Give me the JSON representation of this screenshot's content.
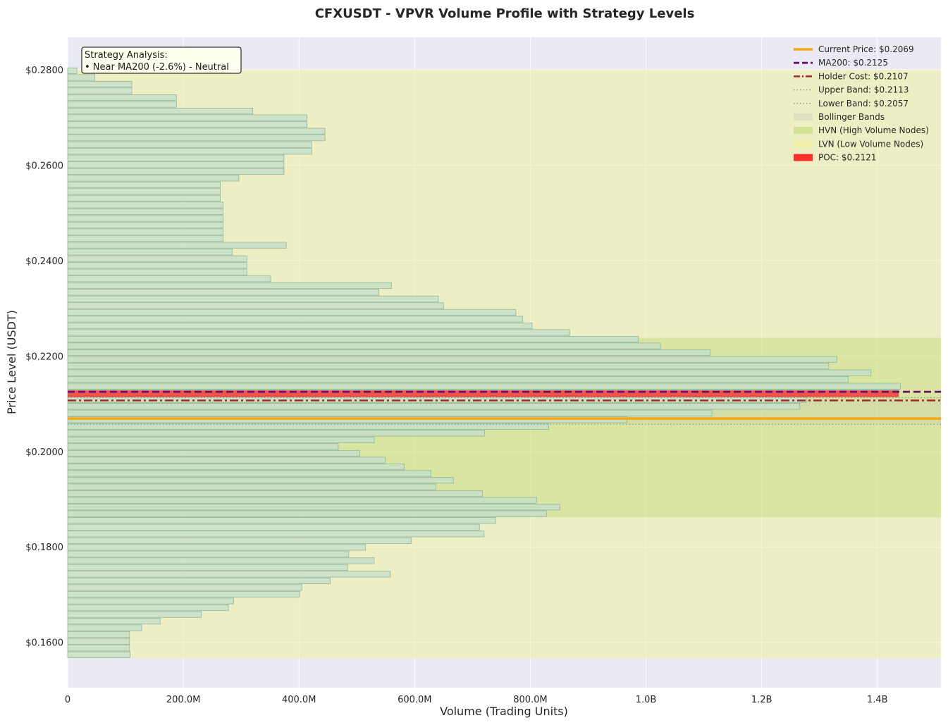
{
  "chart_data": {
    "type": "bar",
    "orientation": "horizontal",
    "title": "CFXUSDT - VPVR Volume Profile with Strategy Levels",
    "xlabel": "Volume (Trading Units)",
    "ylabel": "Price Level (USDT)",
    "xlim": [
      0,
      1510000000
    ],
    "ylim": [
      0.1505,
      0.2868
    ],
    "x_ticks": [
      0,
      200000000,
      400000000,
      600000000,
      800000000,
      1000000000,
      1200000000,
      1400000000
    ],
    "x_tick_labels": [
      "0",
      "200.0M",
      "400.0M",
      "600.0M",
      "800.0M",
      "1.0B",
      "1.2B",
      "1.4B"
    ],
    "y_ticks": [
      0.16,
      0.18,
      0.2,
      0.22,
      0.24,
      0.26,
      0.28
    ],
    "y_tick_labels": [
      "$0.1600",
      "$0.1800",
      "$0.2000",
      "$0.2200",
      "$0.2400",
      "$0.2600",
      "$0.2800"
    ],
    "grid": true,
    "legend_position": "top-right",
    "bin_price_min": 0.1567,
    "bin_price_max": 0.2805,
    "volumes_bottom_to_top": [
      108000000,
      107000000,
      107000000,
      107000000,
      128000000,
      160000000,
      231000000,
      278000000,
      287000000,
      401000000,
      405000000,
      454000000,
      558000000,
      484000000,
      530000000,
      486000000,
      515000000,
      594000000,
      720000000,
      712000000,
      740000000,
      828000000,
      851000000,
      811000000,
      717000000,
      637000000,
      667000000,
      628000000,
      582000000,
      549000000,
      505000000,
      468000000,
      530000000,
      721000000,
      832000000,
      967000000,
      1114000000,
      1266000000,
      1277000000,
      1437000000,
      1440000000,
      1350000000,
      1389000000,
      1316000000,
      1330000000,
      1111000000,
      1025000000,
      987000000,
      868000000,
      803000000,
      787000000,
      775000000,
      650000000,
      641000000,
      538000000,
      560000000,
      351000000,
      310000000,
      310000000,
      310000000,
      285000000,
      378000000,
      269000000,
      269000000,
      269000000,
      269000000,
      269000000,
      269000000,
      264000000,
      264000000,
      264000000,
      296000000,
      374000000,
      374000000,
      374000000,
      422000000,
      422000000,
      445000000,
      445000000,
      414000000,
      414000000,
      320000000,
      188000000,
      188000000,
      111000000,
      111000000,
      47000000,
      16000000
    ],
    "levels": {
      "current_price": 0.2069,
      "ma200": 0.2125,
      "holder_cost": 0.2107,
      "upper_band": 0.2113,
      "lower_band": 0.2057,
      "poc": 0.2121
    },
    "zones": {
      "hvn": [
        0.1862,
        0.2238
      ],
      "lvn": [
        0.1567,
        0.28
      ]
    },
    "legend": [
      "Current Price: $0.2069",
      "MA200: $0.2125",
      "Holder Cost: $0.2107",
      "Upper Band: $0.2113",
      "Lower Band: $0.2057",
      "Bollinger Bands",
      "HVN (High Volume Nodes)",
      "LVN (Low Volume Nodes)",
      "POC: $0.2121"
    ],
    "annotation": {
      "heading": "Strategy Analysis:",
      "line": "• Near MA200 (-2.6%) - Neutral"
    },
    "colors": {
      "background": "#eaeaf2",
      "bar_fill": "#c7dfc9",
      "bar_edge": "#8fb89a",
      "current_price": "#f5a614",
      "ma200": "#6b0f6b",
      "holder_cost": "#a52a2a",
      "band": "#7fa87f",
      "hvn_zone": "#9acd32",
      "lvn_zone": "#f0f0a0",
      "poc": "#ff1a1a",
      "annotation_bg": "#fffff0"
    }
  }
}
